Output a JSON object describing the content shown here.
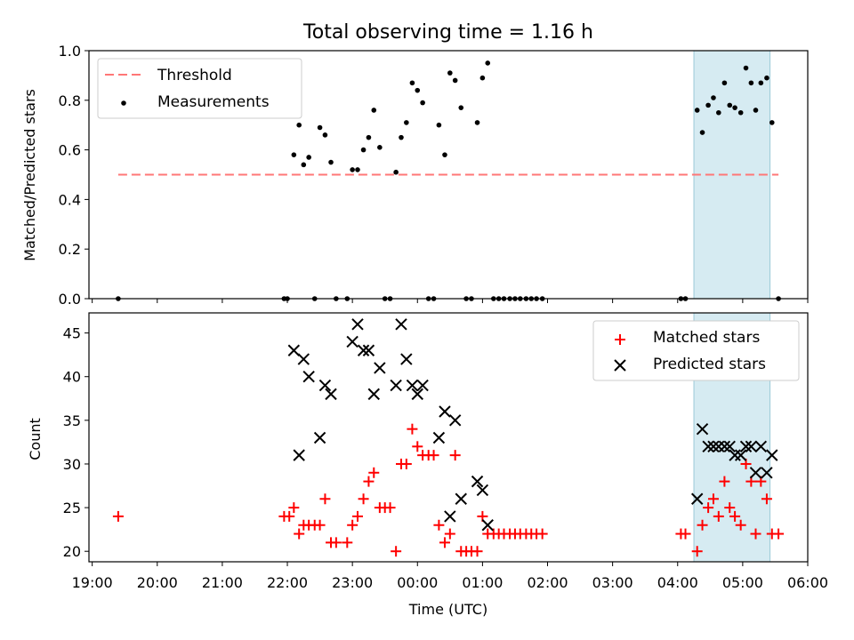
{
  "chart_data": [
    {
      "panel": "top",
      "type": "scatter",
      "title": "Total observing time = 1.16 h",
      "xlabel": "",
      "ylabel": "Matched/Predicted stars",
      "ylim": [
        0,
        1.0
      ],
      "yticks": [
        "0.0",
        "0.2",
        "0.4",
        "0.6",
        "0.8",
        "1.0"
      ],
      "xlim_hours": [
        18.95,
        30.0
      ],
      "legend_position": "top-left",
      "highlight_span_hours": [
        28.25,
        29.42
      ],
      "threshold": {
        "name": "Threshold",
        "value": 0.5,
        "x_range_hours": [
          19.4,
          29.55
        ]
      },
      "series": [
        {
          "name": "Measurements",
          "points": [
            [
              19.4,
              0.0
            ],
            [
              21.95,
              0.0
            ],
            [
              22.0,
              0.0
            ],
            [
              22.1,
              0.58
            ],
            [
              22.18,
              0.7
            ],
            [
              22.25,
              0.54
            ],
            [
              22.33,
              0.57
            ],
            [
              22.42,
              0.0
            ],
            [
              22.5,
              0.69
            ],
            [
              22.58,
              0.66
            ],
            [
              22.67,
              0.55
            ],
            [
              22.75,
              0.0
            ],
            [
              22.92,
              0.0
            ],
            [
              23.0,
              0.52
            ],
            [
              23.08,
              0.52
            ],
            [
              23.17,
              0.6
            ],
            [
              23.25,
              0.65
            ],
            [
              23.33,
              0.76
            ],
            [
              23.42,
              0.61
            ],
            [
              23.5,
              0.0
            ],
            [
              23.58,
              0.0
            ],
            [
              23.67,
              0.51
            ],
            [
              23.75,
              0.65
            ],
            [
              23.83,
              0.71
            ],
            [
              23.92,
              0.87
            ],
            [
              24.0,
              0.84
            ],
            [
              24.08,
              0.79
            ],
            [
              24.17,
              0.0
            ],
            [
              24.25,
              0.0
            ],
            [
              24.33,
              0.7
            ],
            [
              24.42,
              0.58
            ],
            [
              24.5,
              0.91
            ],
            [
              24.58,
              0.88
            ],
            [
              24.67,
              0.77
            ],
            [
              24.75,
              0.0
            ],
            [
              24.83,
              0.0
            ],
            [
              24.92,
              0.71
            ],
            [
              25.0,
              0.89
            ],
            [
              25.08,
              0.95
            ],
            [
              25.17,
              0.0
            ],
            [
              25.25,
              0.0
            ],
            [
              25.33,
              0.0
            ],
            [
              25.42,
              0.0
            ],
            [
              25.5,
              0.0
            ],
            [
              25.58,
              0.0
            ],
            [
              25.67,
              0.0
            ],
            [
              25.75,
              0.0
            ],
            [
              25.83,
              0.0
            ],
            [
              25.92,
              0.0
            ],
            [
              28.05,
              0.0
            ],
            [
              28.12,
              0.0
            ],
            [
              28.3,
              0.76
            ],
            [
              28.38,
              0.67
            ],
            [
              28.47,
              0.78
            ],
            [
              28.55,
              0.81
            ],
            [
              28.63,
              0.75
            ],
            [
              28.72,
              0.87
            ],
            [
              28.8,
              0.78
            ],
            [
              28.88,
              0.77
            ],
            [
              28.97,
              0.75
            ],
            [
              29.05,
              0.93
            ],
            [
              29.13,
              0.87
            ],
            [
              29.2,
              0.76
            ],
            [
              29.28,
              0.87
            ],
            [
              29.37,
              0.89
            ],
            [
              29.45,
              0.71
            ],
            [
              29.55,
              0.0
            ]
          ]
        }
      ]
    },
    {
      "panel": "bottom",
      "type": "scatter",
      "title": "",
      "xlabel": "Time (UTC)",
      "ylabel": "Count",
      "ylim": [
        18.8,
        47.3
      ],
      "yticks": [
        20,
        25,
        30,
        35,
        40,
        45
      ],
      "xlim_hours": [
        18.95,
        30.0
      ],
      "xticks": [
        "19:00",
        "20:00",
        "21:00",
        "22:00",
        "23:00",
        "00:00",
        "01:00",
        "02:00",
        "03:00",
        "04:00",
        "05:00",
        "06:00"
      ],
      "legend_position": "top-right",
      "highlight_span_hours": [
        28.25,
        29.42
      ],
      "series": [
        {
          "name": "Matched stars",
          "color": "#ff0000",
          "marker": "plus",
          "points": [
            [
              19.4,
              24
            ],
            [
              21.95,
              24
            ],
            [
              22.03,
              24
            ],
            [
              22.1,
              25
            ],
            [
              22.18,
              22
            ],
            [
              22.25,
              23
            ],
            [
              22.33,
              23
            ],
            [
              22.42,
              23
            ],
            [
              22.5,
              23
            ],
            [
              22.58,
              26
            ],
            [
              22.67,
              21
            ],
            [
              22.75,
              21
            ],
            [
              22.92,
              21
            ],
            [
              23.0,
              23
            ],
            [
              23.08,
              24
            ],
            [
              23.17,
              26
            ],
            [
              23.25,
              28
            ],
            [
              23.33,
              29
            ],
            [
              23.42,
              25
            ],
            [
              23.5,
              25
            ],
            [
              23.58,
              25
            ],
            [
              23.67,
              20
            ],
            [
              23.75,
              30
            ],
            [
              23.83,
              30
            ],
            [
              23.92,
              34
            ],
            [
              24.0,
              32
            ],
            [
              24.08,
              31
            ],
            [
              24.17,
              31
            ],
            [
              24.25,
              31
            ],
            [
              24.33,
              23
            ],
            [
              24.42,
              21
            ],
            [
              24.5,
              22
            ],
            [
              24.58,
              31
            ],
            [
              24.67,
              20
            ],
            [
              24.75,
              20
            ],
            [
              24.83,
              20
            ],
            [
              24.92,
              20
            ],
            [
              25.0,
              24
            ],
            [
              25.08,
              22
            ],
            [
              25.17,
              22
            ],
            [
              25.25,
              22
            ],
            [
              25.33,
              22
            ],
            [
              25.42,
              22
            ],
            [
              25.5,
              22
            ],
            [
              25.58,
              22
            ],
            [
              25.67,
              22
            ],
            [
              25.75,
              22
            ],
            [
              25.83,
              22
            ],
            [
              25.92,
              22
            ],
            [
              28.05,
              22
            ],
            [
              28.12,
              22
            ],
            [
              28.3,
              20
            ],
            [
              28.38,
              23
            ],
            [
              28.47,
              25
            ],
            [
              28.55,
              26
            ],
            [
              28.63,
              24
            ],
            [
              28.72,
              28
            ],
            [
              28.8,
              25
            ],
            [
              28.88,
              24
            ],
            [
              28.97,
              23
            ],
            [
              29.05,
              30
            ],
            [
              29.13,
              28
            ],
            [
              29.2,
              22
            ],
            [
              29.28,
              28
            ],
            [
              29.37,
              26
            ],
            [
              29.45,
              22
            ],
            [
              29.55,
              22
            ]
          ]
        },
        {
          "name": "Predicted stars",
          "color": "#000000",
          "marker": "x",
          "points": [
            [
              22.1,
              43
            ],
            [
              22.18,
              31
            ],
            [
              22.25,
              42
            ],
            [
              22.33,
              40
            ],
            [
              22.5,
              33
            ],
            [
              22.58,
              39
            ],
            [
              22.67,
              38
            ],
            [
              23.0,
              44
            ],
            [
              23.08,
              46
            ],
            [
              23.17,
              43
            ],
            [
              23.25,
              43
            ],
            [
              23.33,
              38
            ],
            [
              23.42,
              41
            ],
            [
              23.67,
              39
            ],
            [
              23.75,
              46
            ],
            [
              23.83,
              42
            ],
            [
              23.92,
              39
            ],
            [
              24.0,
              38
            ],
            [
              24.08,
              39
            ],
            [
              24.33,
              33
            ],
            [
              24.42,
              36
            ],
            [
              24.5,
              24
            ],
            [
              24.58,
              35
            ],
            [
              24.67,
              26
            ],
            [
              24.92,
              28
            ],
            [
              25.0,
              27
            ],
            [
              25.08,
              23
            ],
            [
              28.3,
              26
            ],
            [
              28.38,
              34
            ],
            [
              28.47,
              32
            ],
            [
              28.55,
              32
            ],
            [
              28.63,
              32
            ],
            [
              28.72,
              32
            ],
            [
              28.8,
              32
            ],
            [
              28.88,
              31
            ],
            [
              28.97,
              31
            ],
            [
              29.05,
              32
            ],
            [
              29.13,
              32
            ],
            [
              29.2,
              29
            ],
            [
              29.28,
              32
            ],
            [
              29.37,
              29
            ],
            [
              29.45,
              31
            ]
          ]
        }
      ]
    }
  ]
}
